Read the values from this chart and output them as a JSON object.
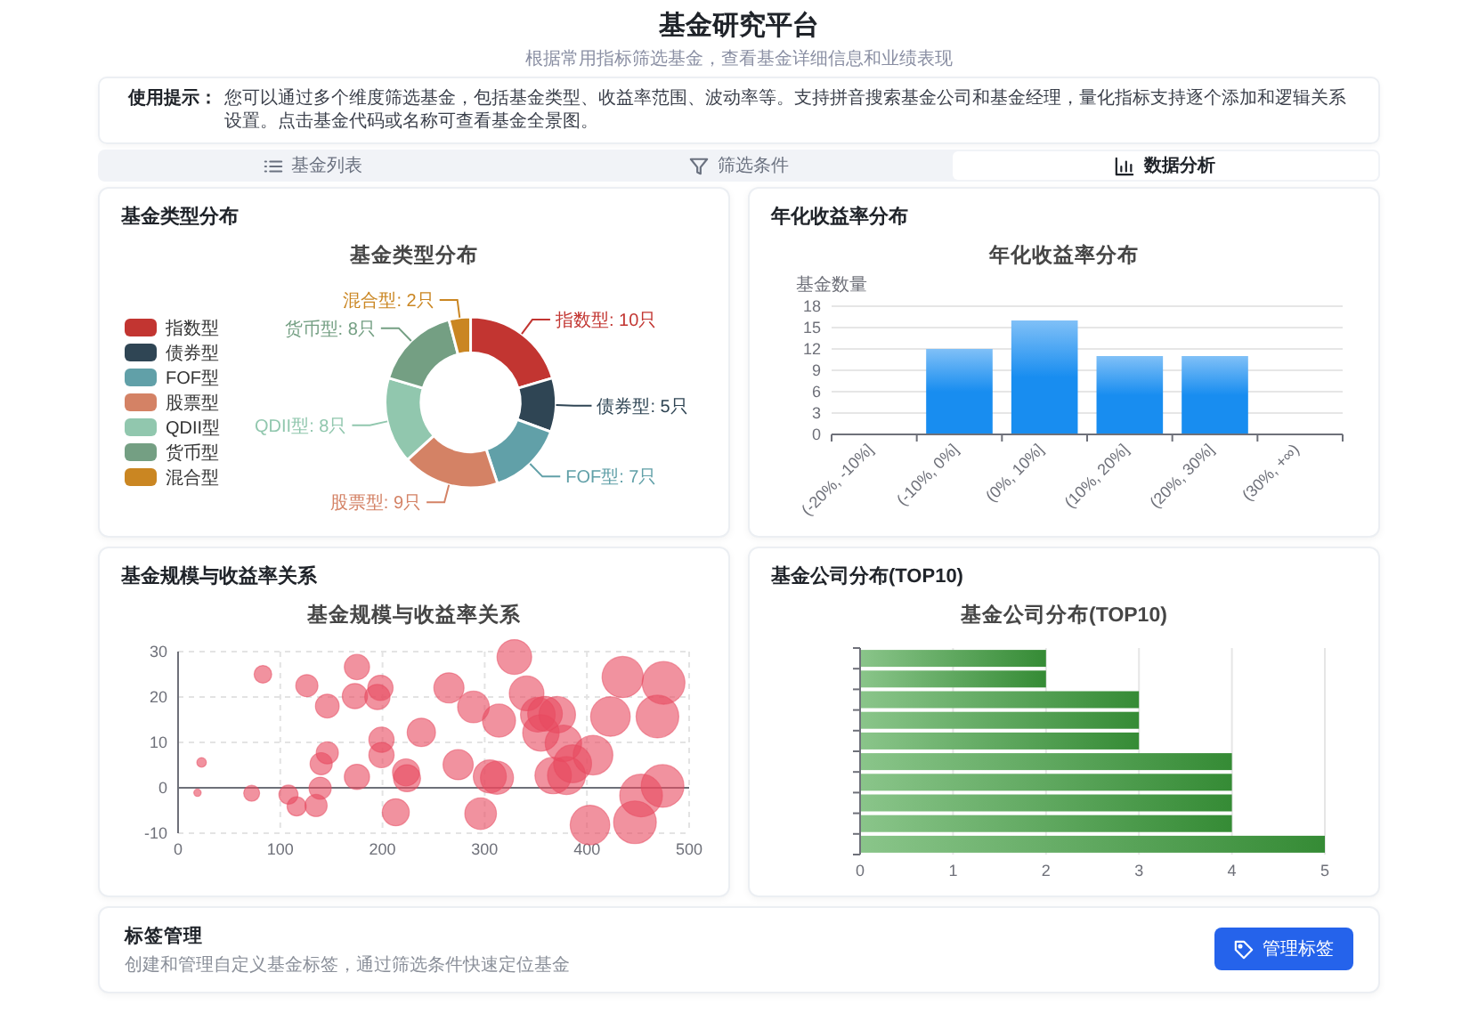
{
  "chart_data": [
    {
      "type": "other",
      "title": "基金研究平台",
      "subtitle": "根据常用指标筛选基金，查看基金详细信息和业绩表现",
      "annotations": [
        "使用提示：",
        "您可以通过多个维度筛选基金，包括基金类型、收益率范围、波动率等。支持拼音搜索基金公司和基金经理，量化指标支持逐个添加和逻辑关系设置。点击基金代码或名称可查看基金全景图。",
        "基金列表",
        "筛选条件",
        "数据分析"
      ]
    },
    {
      "type": "donut",
      "title": "基金类型分布",
      "subtitle": "基金类型分布",
      "categories": [
        "指数型",
        "债券型",
        "FOF型",
        "股票型",
        "QDII型",
        "货币型",
        "混合型"
      ],
      "values": [
        10,
        5,
        7,
        9,
        8,
        8,
        2
      ],
      "colors": [
        "#c23531",
        "#2f4554",
        "#61a0a8",
        "#d48265",
        "#91c7ae",
        "#749f83",
        "#ca8622"
      ],
      "value_labels": [
        "指数型: 10只",
        "债券型: 5只",
        "FOF型: 7只",
        "股票型: 9只",
        "QDII型: 8只",
        "货币型: 8只",
        "混合型: 2只"
      ],
      "legend": "left"
    },
    {
      "type": "bar",
      "title": "年化收益率分布",
      "subtitle": "年化收益率分布",
      "ylabel": "基金数量",
      "categories": [
        "(-20%, -10%]",
        "(-10%, 0%]",
        "(0%, 10%]",
        "(10%, 20%]",
        "(20%, 30%]",
        "(30%, +∞)"
      ],
      "values": [
        0,
        12,
        16,
        11,
        11,
        0
      ],
      "color": "#188df0",
      "ylim": [
        0,
        18
      ],
      "yticks": [
        0,
        3,
        6,
        9,
        12,
        15,
        18
      ],
      "grid": "y"
    },
    {
      "type": "bubble",
      "title": "基金规模与收益率关系",
      "subtitle": "基金规模与收益率关系",
      "x": [
        23,
        19,
        83,
        72,
        108,
        116,
        126,
        135,
        139,
        140,
        146,
        146,
        175,
        173,
        175,
        195,
        198,
        199,
        199,
        213,
        223,
        224,
        238,
        265,
        274,
        289,
        296,
        305,
        312,
        314,
        329,
        341,
        352,
        355,
        359,
        367,
        371,
        377,
        380,
        386,
        403,
        406,
        423,
        435,
        447,
        453,
        469,
        474,
        475
      ],
      "values": [
        5.6,
        -1.1,
        25.0,
        -1.2,
        -1.5,
        -4.1,
        22.5,
        -3.9,
        -0.1,
        5.3,
        7.7,
        18.0,
        26.6,
        20.2,
        2.4,
        20.0,
        22.0,
        10.6,
        7.2,
        -5.4,
        3.4,
        2.1,
        12.2,
        22.0,
        5.1,
        17.8,
        -5.7,
        2.5,
        2.2,
        14.8,
        28.8,
        20.8,
        16.1,
        12.1,
        16.3,
        2.7,
        16.1,
        9.8,
        2.7,
        5.3,
        -8.2,
        7.2,
        15.7,
        24.4,
        -7.6,
        -1.7,
        15.7,
        0.4,
        23.1
      ],
      "sizes": [
        0.05,
        0.03,
        0.17,
        0.14,
        0.2,
        0.2,
        0.27,
        0.27,
        0.27,
        0.27,
        0.27,
        0.31,
        0.35,
        0.35,
        0.35,
        0.35,
        0.35,
        0.35,
        0.35,
        0.4,
        0.4,
        0.4,
        0.44,
        0.5,
        0.5,
        0.55,
        0.55,
        0.6,
        0.6,
        0.6,
        0.66,
        0.66,
        0.66,
        0.73,
        0.66,
        0.73,
        0.73,
        0.73,
        0.79,
        0.79,
        0.86,
        0.86,
        0.86,
        0.93,
        1,
        1,
        1,
        1,
        1
      ],
      "color": "#e84a5f",
      "xlim": [
        0,
        500
      ],
      "ylim": [
        -10,
        30
      ],
      "xticks": [
        0,
        100,
        200,
        300,
        400,
        500
      ],
      "yticks": [
        -10,
        0,
        10,
        20,
        30
      ],
      "grid": true
    },
    {
      "type": "bar",
      "orientation": "horizontal",
      "title": "基金公司分布(TOP10)",
      "subtitle": "基金公司分布(TOP10)",
      "categories": [
        null,
        null,
        null,
        null,
        null,
        null,
        null,
        null,
        null,
        null
      ],
      "values": [
        2,
        2,
        3,
        3,
        3,
        4,
        4,
        4,
        4,
        5
      ],
      "color": "#3c9e3c",
      "xlim": [
        0,
        5
      ],
      "xticks": [
        0,
        1,
        2,
        3,
        4,
        5
      ],
      "grid": "x"
    },
    {
      "type": "other",
      "title": "标签管理",
      "subtitle": "创建和管理自定义基金标签，通过筛选条件快速定位基金",
      "annotations": [
        "管理标签"
      ]
    }
  ]
}
